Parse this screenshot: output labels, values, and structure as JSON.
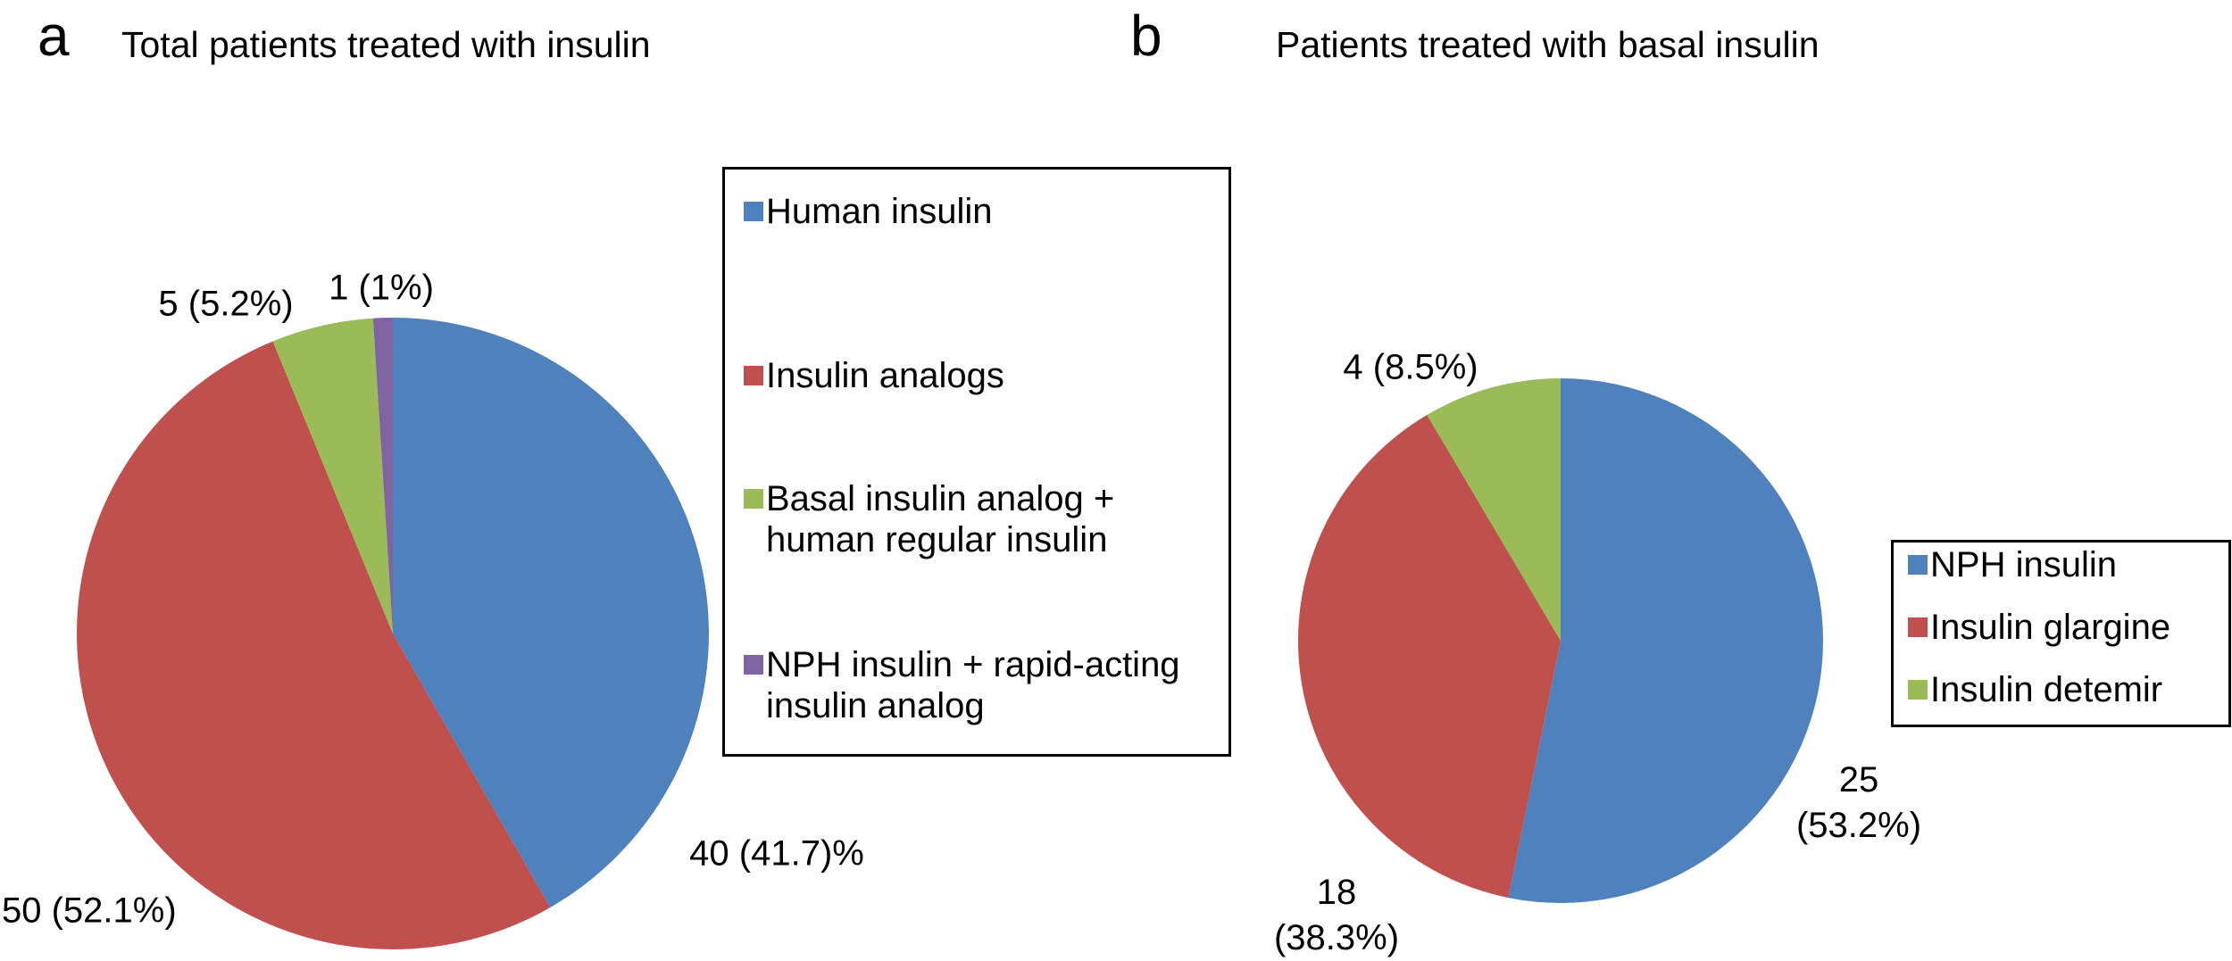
{
  "figure": {
    "panels": [
      {
        "letter": "a",
        "title": "Total patients treated with insulin"
      },
      {
        "letter": "b",
        "title": "Patients treated with basal insulin"
      }
    ]
  },
  "chart_data": [
    {
      "type": "pie",
      "title": "Total patients treated with insulin",
      "start_angle_deg": 0,
      "direction": "clockwise",
      "legend_position": "right",
      "legend_border": true,
      "slices": [
        {
          "label": "Human insulin",
          "value": 40,
          "pct": 41.7,
          "color": "#4F81BD",
          "data_label": "40 (41.7)%"
        },
        {
          "label": "Insulin analogs",
          "value": 50,
          "pct": 52.1,
          "color": "#C0504D",
          "data_label": "50 (52.1%)"
        },
        {
          "label": "Basal insulin analog + human regular insulin",
          "value": 5,
          "pct": 5.2,
          "color": "#9BBB59",
          "data_label": "5 (5.2%)"
        },
        {
          "label": "NPH insulin + rapid-acting insulin analog",
          "value": 1,
          "pct": 1.0,
          "color": "#8064A2",
          "data_label": "1 (1%)"
        }
      ]
    },
    {
      "type": "pie",
      "title": "Patients treated with basal insulin",
      "start_angle_deg": 0,
      "direction": "clockwise",
      "legend_position": "right",
      "legend_border": true,
      "slices": [
        {
          "label": "NPH insulin",
          "value": 25,
          "pct": 53.2,
          "color": "#4F81BD",
          "data_label": "25\n(53.2%)"
        },
        {
          "label": "Insulin glargine",
          "value": 18,
          "pct": 38.3,
          "color": "#C0504D",
          "data_label": "18\n(38.3%)"
        },
        {
          "label": "Insulin detemir",
          "value": 4,
          "pct": 8.5,
          "color": "#9BBB59",
          "data_label": "4 (8.5%)"
        }
      ]
    }
  ]
}
